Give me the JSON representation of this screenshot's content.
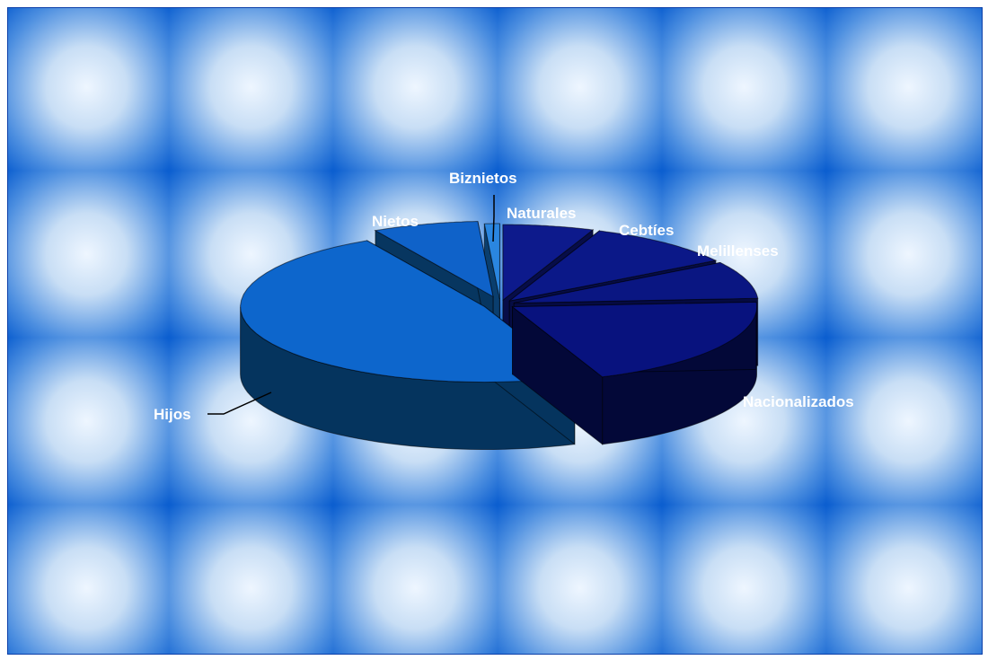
{
  "chart_data": {
    "type": "pie",
    "style": "3d-exploded",
    "title": "",
    "series": [
      {
        "categories": [
          "Naturales",
          "Cebtíes",
          "Melillenses",
          "Nacionalizados",
          "Hijos",
          "Nietos",
          "Biznietos"
        ],
        "values": [
          6,
          10,
          8,
          20,
          48,
          7,
          1
        ]
      }
    ],
    "colors": [
      "#0d1a8c",
      "#0b1888",
      "#0a1682",
      "#08127e",
      "#0d66cc",
      "#0f62c9",
      "#2a86e0"
    ],
    "side_colors": [
      "#070d48",
      "#060c44",
      "#050a40",
      "#030838",
      "#05345e",
      "#073660",
      "#0a3e6e"
    ],
    "legend": "none",
    "background": "tiled-blue-gradient"
  }
}
